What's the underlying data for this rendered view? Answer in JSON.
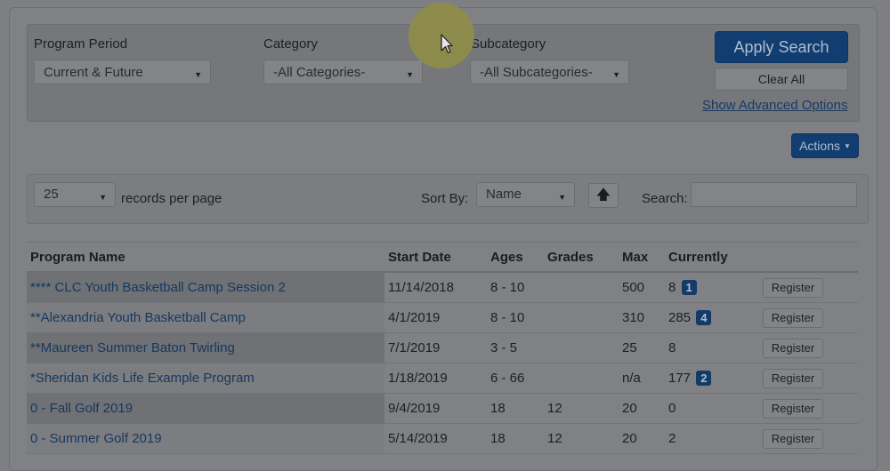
{
  "filters": {
    "program_period": {
      "label": "Program Period",
      "value": "Current & Future"
    },
    "category": {
      "label": "Category",
      "value": "-All Categories-"
    },
    "subcategory": {
      "label": "Subcategory",
      "value": "-All Subcategories-"
    },
    "apply_label": "Apply Search",
    "clear_label": "Clear All",
    "advanced_link": "Show Advanced Options"
  },
  "actions_label": "Actions",
  "toolbar": {
    "per_page_value": "25",
    "per_page_label": "records per page",
    "sort_by_label": "Sort By:",
    "sort_value": "Name",
    "search_label": "Search:",
    "search_value": ""
  },
  "table": {
    "headers": [
      "Program Name",
      "Start Date",
      "Ages",
      "Grades",
      "Max",
      "Currently",
      ""
    ],
    "register_label": "Register",
    "rows": [
      {
        "name": "**** CLC Youth Basketball Camp Session 2",
        "start": "11/14/2018",
        "ages": "8 - 10",
        "grades": "",
        "max": "500",
        "currently": "8",
        "badge": "1"
      },
      {
        "name": "**Alexandria Youth Basketball Camp",
        "start": "4/1/2019",
        "ages": "8 - 10",
        "grades": "",
        "max": "310",
        "currently": "285",
        "badge": "4"
      },
      {
        "name": "**Maureen Summer Baton Twirling",
        "start": "7/1/2019",
        "ages": "3 - 5",
        "grades": "",
        "max": "25",
        "currently": "8",
        "badge": ""
      },
      {
        "name": "*Sheridan Kids Life Example Program",
        "start": "1/18/2019",
        "ages": "6 - 66",
        "grades": "",
        "max": "n/a",
        "currently": "177",
        "badge": "2"
      },
      {
        "name": "0 - Fall Golf 2019",
        "start": "9/4/2019",
        "ages": "18",
        "grades": "12",
        "max": "20",
        "currently": "0",
        "badge": ""
      },
      {
        "name": "0 - Summer Golf 2019",
        "start": "5/14/2019",
        "ages": "18",
        "grades": "12",
        "max": "20",
        "currently": "2",
        "badge": ""
      }
    ]
  },
  "icons": {
    "caret": "caret-down-icon",
    "sort": "arrow-up-icon",
    "cursor": "mouse-pointer-icon"
  }
}
